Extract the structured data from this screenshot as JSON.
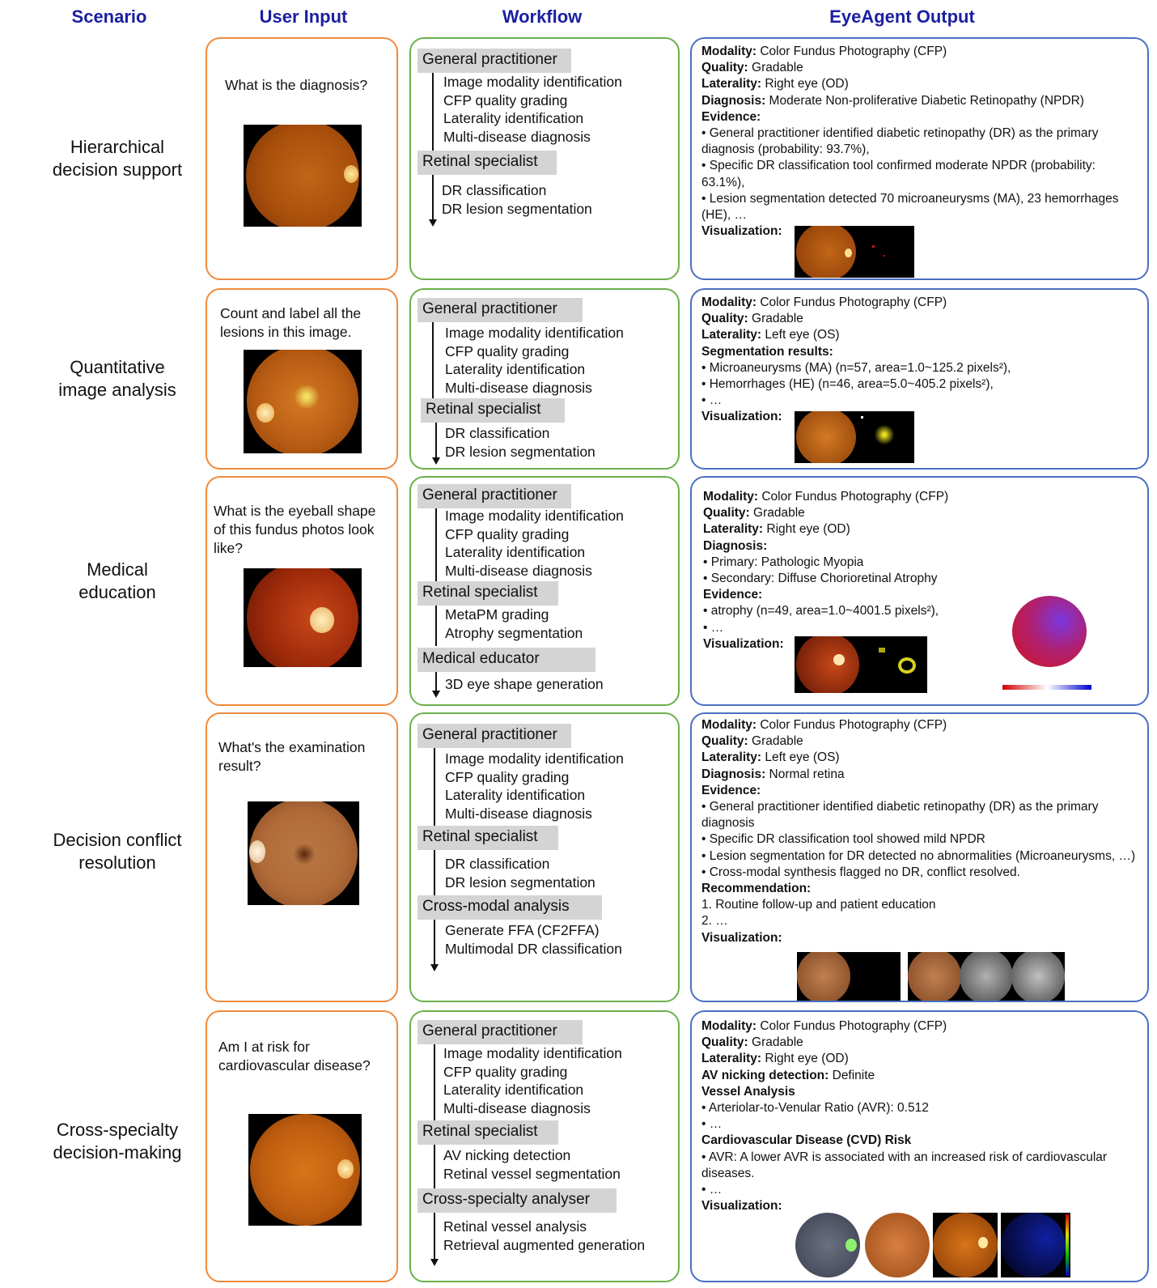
{
  "headers": {
    "scenario": "Scenario",
    "user_input": "User Input",
    "workflow": "Workflow",
    "output": "EyeAgent Output"
  },
  "rows": [
    {
      "scenario": [
        "Hierarchical",
        "decision support"
      ],
      "question": [
        "What is the diagnosis?"
      ],
      "workflow": {
        "roles": [
          {
            "title": "General practitioner",
            "steps": [
              "Image modality identification",
              "CFP quality grading",
              "Laterality identification",
              "Multi-disease diagnosis"
            ]
          },
          {
            "title": "Retinal specialist",
            "steps": [
              "DR classification",
              "DR lesion segmentation"
            ]
          }
        ]
      },
      "output": {
        "modality_label": "Modality:",
        "modality": " Color Fundus Photography (CFP)",
        "quality_label": "Quality:",
        "quality": " Gradable",
        "laterality_label": "Laterality:",
        "laterality": " Right eye (OD)",
        "diagnosis_label": "Diagnosis:",
        "diagnosis": " Moderate Non-proliferative Diabetic Retinopathy (NPDR)",
        "evidence_label": "Evidence:",
        "evidence": [
          "•  General practitioner identified diabetic retinopathy (DR) as the primary diagnosis (probability: 93.7%),",
          "•  Specific DR classification tool confirmed moderate NPDR (probability: 63.1%),",
          "•  Lesion segmentation detected 70 microaneurysms (MA), 23 hemorrhages (HE), …"
        ],
        "viz_label": "Visualization:"
      }
    },
    {
      "scenario": [
        "Quantitative",
        "image analysis"
      ],
      "question": [
        "Count and label all the",
        "lesions in this image."
      ],
      "workflow": {
        "roles": [
          {
            "title": "General practitioner",
            "steps": [
              "Image modality identification",
              "CFP quality grading",
              "Laterality identification",
              "Multi-disease diagnosis"
            ]
          },
          {
            "title": "Retinal specialist",
            "steps": [
              "DR classification",
              "DR lesion segmentation"
            ]
          }
        ]
      },
      "output": {
        "modality_label": "Modality:",
        "modality": " Color Fundus Photography (CFP)",
        "quality_label": "Quality:",
        "quality": " Gradable",
        "laterality_label": "Laterality:",
        "laterality": " Left eye (OS)",
        "seg_label": "Segmentation results:",
        "seg": [
          "•     Microaneurysms (MA) (n=57, area=1.0~125.2 pixels²),",
          "•     Hemorrhages (HE) (n=46, area=5.0~405.2 pixels²),",
          "•     …"
        ],
        "viz_label": "Visualization:"
      }
    },
    {
      "scenario": [
        "Medical",
        "education"
      ],
      "question": [
        "What is the eyeball shape",
        "of this fundus photos look",
        "like?"
      ],
      "workflow": {
        "roles": [
          {
            "title": "General practitioner",
            "steps": [
              "Image modality identification",
              "CFP quality grading",
              "Laterality identification",
              "Multi-disease diagnosis"
            ]
          },
          {
            "title": "Retinal specialist",
            "steps": [
              "MetaPM grading",
              "Atrophy segmentation"
            ]
          },
          {
            "title": "Medical educator",
            "steps": [
              "3D eye shape generation"
            ]
          }
        ]
      },
      "output": {
        "modality_label": "Modality:",
        "modality": " Color Fundus Photography (CFP)",
        "quality_label": "Quality:",
        "quality": " Gradable",
        "laterality_label": "Laterality:",
        "laterality": " Right eye (OD)",
        "diagnosis_label": "Diagnosis:",
        "diagnosis_items": [
          "•     Primary: Pathologic Myopia",
          "•     Secondary: Diffuse Chorioretinal Atrophy"
        ],
        "evidence_label": "Evidence:",
        "evidence": [
          "•     atrophy (n=49, area=1.0~4001.5 pixels²),",
          "•     …"
        ],
        "viz_label": "Visualization:"
      }
    },
    {
      "scenario": [
        "Decision conflict",
        "resolution"
      ],
      "question": [
        "What's the examination",
        "result?"
      ],
      "workflow": {
        "roles": [
          {
            "title": "General practitioner",
            "steps": [
              "Image modality identification",
              "CFP quality grading",
              "Laterality identification",
              "Multi-disease diagnosis"
            ]
          },
          {
            "title": "Retinal specialist",
            "steps": [
              "DR classification",
              "DR lesion segmentation"
            ]
          },
          {
            "title": "Cross-modal analysis",
            "steps": [
              "Generate FFA (CF2FFA)",
              "Multimodal DR classification"
            ]
          }
        ]
      },
      "output": {
        "modality_label": "Modality:",
        "modality": " Color Fundus Photography (CFP)",
        "quality_label": "Quality:",
        "quality": " Gradable",
        "laterality_label": "Laterality:",
        "laterality": " Left eye (OS)",
        "diagnosis_label": "Diagnosis:",
        "diagnosis": " Normal retina",
        "evidence_label": "Evidence:",
        "evidence": [
          "• General practitioner identified diabetic retinopathy (DR) as the primary diagnosis",
          "• Specific DR classification tool showed mild NPDR",
          "• Lesion segmentation for DR detected no abnormalities (Microaneurysms, …)",
          "• Cross-modal synthesis flagged no DR, conflict resolved."
        ],
        "rec_label": "Recommendation:",
        "rec": [
          "1. Routine follow-up and patient education",
          "2. …"
        ],
        "viz_label": "Visualization:"
      }
    },
    {
      "scenario": [
        "Cross-specialty",
        "decision-making"
      ],
      "question": [
        "Am I at risk for",
        "cardiovascular disease?"
      ],
      "workflow": {
        "roles": [
          {
            "title": "General practitioner",
            "steps": [
              "Image modality identification",
              "CFP quality grading",
              "Laterality identification",
              "Multi-disease diagnosis"
            ]
          },
          {
            "title": "Retinal specialist",
            "steps": [
              "AV nicking detection",
              "Retinal vessel segmentation"
            ]
          },
          {
            "title": "Cross-specialty analyser",
            "steps": [
              "Retinal vessel analysis",
              "Retrieval augmented generation"
            ]
          }
        ]
      },
      "output": {
        "modality_label": "Modality:",
        "modality": " Color Fundus Photography (CFP)",
        "quality_label": "Quality:",
        "quality": " Gradable",
        "laterality_label": "Laterality:",
        "laterality": " Right eye (OD)",
        "av_label": "AV nicking detection:",
        "av": " Definite",
        "vessel_label": "Vessel Analysis",
        "vessel": [
          "•     Arteriolar-to-Venular Ratio (AVR): 0.512",
          "•     …"
        ],
        "cvd_label": "Cardiovascular Disease (CVD) Risk",
        "cvd": [
          "•   AVR: A lower AVR is associated with an increased risk of cardiovascular diseases.",
          "•     …"
        ],
        "viz_label": "Visualization:"
      }
    }
  ],
  "colors": {
    "header": "#1a1fa0",
    "user_input_border": "#ef8a3c",
    "workflow_border": "#6bb04a",
    "output_border": "#4a6fc2",
    "role_fill": "#d4d4d4"
  }
}
